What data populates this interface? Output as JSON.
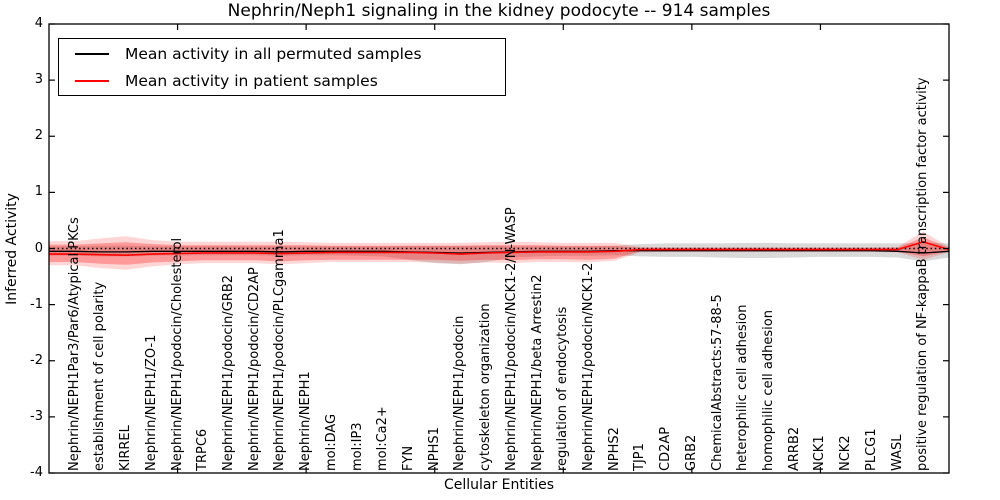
{
  "title": "Nephrin/Neph1 signaling in the kidney podocyte -- 914 samples",
  "axes": {
    "ylabel": "Inferred Activity",
    "xlabel": "Cellular Entities",
    "ytick_labels": [
      "4",
      "3",
      "2",
      "1",
      "0",
      "-1",
      "-2",
      "-3",
      "-4"
    ]
  },
  "legend": {
    "items": [
      {
        "label": "Mean activity in all permuted samples",
        "color": "#000000"
      },
      {
        "label": "Mean activity in patient samples",
        "color": "#ff0000"
      }
    ]
  },
  "colors": {
    "permuted_line": "#000000",
    "patient_line": "#ff0000",
    "permuted_band": "#808080",
    "patient_band": "#ff0000",
    "frame": "#000000"
  },
  "chart_data": {
    "type": "line",
    "title": "Nephrin/Neph1 signaling in the kidney podocyte -- 914 samples",
    "xlabel": "Cellular Entities",
    "ylabel": "Inferred Activity",
    "ylim": [
      -4,
      4
    ],
    "yticks": [
      4,
      3,
      2,
      1,
      0,
      -1,
      -2,
      -3,
      -4
    ],
    "grid": false,
    "legend_position": "upper left",
    "reference_line": {
      "y": 0,
      "style": "dotted",
      "color": "#000000"
    },
    "categories": [
      "Nephrin/NEPH1Par3/Par6/Atypical PKCs",
      "establishment of cell polarity",
      "KIRREL",
      "Nephrin/NEPH1/ZO-1",
      "Nephrin/NEPH1/podocin/Cholesterol",
      "TRPC6",
      "Nephrin/NEPH1/podocin/GRB2",
      "Nephrin/NEPH1/podocin/CD2AP",
      "Nephrin/NEPH1/podocin/PLCgamma1",
      "Nephrin/NEPH1",
      "mol:DAG",
      "mol:IP3",
      "mol:Ca2+",
      "FYN",
      "NPHS1",
      "Nephrin/NEPH1/podocin",
      "cytoskeleton organization",
      "Nephrin/NEPH1/podocin/NCK1-2/N-WASP",
      "Nephrin/NEPH1/beta Arrestin2",
      "regulation of endocytosis",
      "Nephrin/NEPH1/podocin/NCK1-2",
      "NPHS2",
      "TJP1",
      "CD2AP",
      "GRB2",
      "ChemicalAbstracts:57-88-5",
      "heterophilic cell adhesion",
      "homophilic cell adhesion",
      "ARRB2",
      "NCK1",
      "NCK2",
      "PLCG1",
      "WASL",
      "positive regulation of NF-kappaB transcription factor activity"
    ],
    "series": [
      {
        "name": "Mean activity in all permuted samples",
        "color": "#000000",
        "values": [
          -0.05,
          -0.06,
          -0.06,
          -0.05,
          -0.05,
          -0.05,
          -0.05,
          -0.05,
          -0.06,
          -0.05,
          -0.05,
          -0.05,
          -0.05,
          -0.06,
          -0.07,
          -0.08,
          -0.07,
          -0.06,
          -0.05,
          -0.05,
          -0.05,
          -0.04,
          -0.04,
          -0.04,
          -0.04,
          -0.04,
          -0.04,
          -0.04,
          -0.04,
          -0.04,
          -0.04,
          -0.04,
          -0.05,
          -0.08
        ]
      },
      {
        "name": "Mean activity in patient samples",
        "color": "#ff0000",
        "values": [
          -0.1,
          -0.11,
          -0.12,
          -0.1,
          -0.09,
          -0.08,
          -0.08,
          -0.08,
          -0.09,
          -0.08,
          -0.07,
          -0.07,
          -0.07,
          -0.07,
          -0.08,
          -0.1,
          -0.08,
          -0.07,
          -0.06,
          -0.06,
          -0.06,
          -0.05,
          -0.02,
          -0.02,
          -0.02,
          -0.02,
          -0.02,
          -0.02,
          -0.02,
          -0.02,
          -0.02,
          -0.02,
          -0.02,
          0.12
        ]
      }
    ],
    "bands": [
      {
        "name": "permuted-range",
        "color": "#808080",
        "opacity": 0.3,
        "upper": [
          0.04,
          0.05,
          0.05,
          0.04,
          0.04,
          0.04,
          0.04,
          0.04,
          0.04,
          0.04,
          0.04,
          0.04,
          0.04,
          0.05,
          0.05,
          0.05,
          0.05,
          0.04,
          0.04,
          0.04,
          0.04,
          0.05,
          0.08,
          0.09,
          0.09,
          0.09,
          0.1,
          0.1,
          0.09,
          0.09,
          0.09,
          0.09,
          0.09,
          0.1
        ],
        "lower": [
          -0.13,
          -0.14,
          -0.14,
          -0.13,
          -0.12,
          -0.12,
          -0.12,
          -0.12,
          -0.13,
          -0.12,
          -0.12,
          -0.13,
          -0.14,
          -0.2,
          -0.26,
          -0.28,
          -0.24,
          -0.16,
          -0.14,
          -0.13,
          -0.13,
          -0.12,
          -0.14,
          -0.15,
          -0.15,
          -0.16,
          -0.17,
          -0.17,
          -0.16,
          -0.15,
          -0.15,
          -0.15,
          -0.16,
          -0.23
        ]
      },
      {
        "name": "patient-range-outer",
        "color": "#ff0000",
        "opacity": 0.16,
        "upper": [
          0.13,
          0.18,
          0.22,
          0.15,
          0.12,
          0.12,
          0.12,
          0.12,
          0.12,
          0.11,
          0.1,
          0.1,
          0.1,
          0.1,
          0.1,
          0.1,
          0.11,
          0.12,
          0.11,
          0.1,
          0.1,
          0.1,
          0.03,
          0.02,
          0.02,
          0.02,
          0.02,
          0.02,
          0.02,
          0.02,
          0.02,
          0.02,
          0.03,
          0.3
        ],
        "lower": [
          -0.3,
          -0.35,
          -0.38,
          -0.32,
          -0.28,
          -0.26,
          -0.26,
          -0.26,
          -0.28,
          -0.26,
          -0.24,
          -0.24,
          -0.24,
          -0.24,
          -0.25,
          -0.27,
          -0.25,
          -0.26,
          -0.24,
          -0.24,
          -0.25,
          -0.22,
          -0.07,
          -0.06,
          -0.06,
          -0.06,
          -0.06,
          -0.06,
          -0.06,
          -0.06,
          -0.06,
          -0.06,
          -0.07,
          -0.2
        ]
      },
      {
        "name": "patient-range-inner",
        "color": "#ff0000",
        "opacity": 0.28,
        "upper": [
          0.07,
          0.09,
          0.11,
          0.08,
          0.06,
          0.06,
          0.06,
          0.06,
          0.06,
          0.06,
          0.05,
          0.05,
          0.05,
          0.05,
          0.05,
          0.05,
          0.06,
          0.06,
          0.06,
          0.05,
          0.05,
          0.05,
          0.01,
          0.01,
          0.01,
          0.01,
          0.01,
          0.01,
          0.01,
          0.01,
          0.01,
          0.01,
          0.01,
          0.2
        ],
        "lower": [
          -0.24,
          -0.27,
          -0.29,
          -0.25,
          -0.23,
          -0.21,
          -0.21,
          -0.21,
          -0.23,
          -0.21,
          -0.2,
          -0.2,
          -0.2,
          -0.2,
          -0.2,
          -0.22,
          -0.2,
          -0.21,
          -0.19,
          -0.19,
          -0.2,
          -0.18,
          -0.05,
          -0.04,
          -0.04,
          -0.04,
          -0.04,
          -0.04,
          -0.04,
          -0.04,
          -0.04,
          -0.04,
          -0.05,
          -0.14
        ]
      }
    ]
  }
}
